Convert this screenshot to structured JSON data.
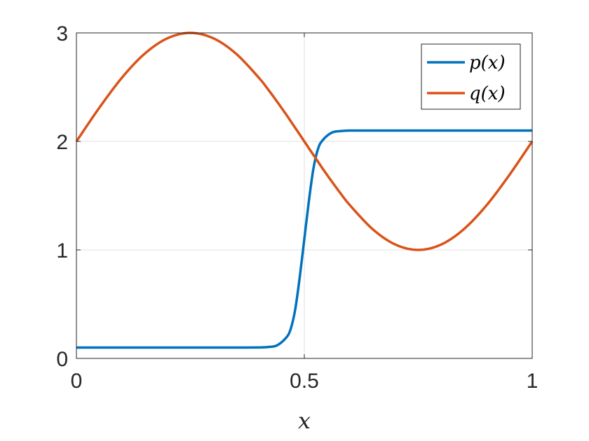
{
  "chart_data": {
    "type": "line",
    "title": "",
    "xlabel": "x",
    "ylabel": "",
    "xlim": [
      0,
      1
    ],
    "ylim": [
      0,
      3
    ],
    "xticks": [
      0,
      0.5,
      1
    ],
    "xtick_labels": [
      "0",
      "0.5",
      "1"
    ],
    "yticks": [
      0,
      1,
      2,
      3
    ],
    "ytick_labels": [
      "0",
      "1",
      "2",
      "3"
    ],
    "grid": true,
    "legend_position": "top-right",
    "x": [
      0,
      0.05,
      0.1,
      0.15,
      0.2,
      0.25,
      0.3,
      0.35,
      0.4,
      0.42,
      0.44,
      0.46,
      0.47,
      0.48,
      0.49,
      0.5,
      0.51,
      0.52,
      0.53,
      0.54,
      0.56,
      0.58,
      0.6,
      0.65,
      0.7,
      0.75,
      0.8,
      0.85,
      0.9,
      0.95,
      1
    ],
    "series": [
      {
        "name": "p(x)",
        "color": "#0072BD",
        "values": [
          0.1,
          0.1,
          0.1,
          0.1,
          0.1,
          0.1,
          0.1,
          0.1,
          0.101,
          0.105,
          0.12,
          0.19,
          0.27,
          0.45,
          0.75,
          1.1,
          1.45,
          1.75,
          1.93,
          2.01,
          2.08,
          2.095,
          2.1,
          2.1,
          2.1,
          2.1,
          2.1,
          2.1,
          2.1,
          2.1,
          2.1
        ]
      },
      {
        "name": "q(x)",
        "color": "#D95319",
        "values": [
          2,
          2.309,
          2.588,
          2.809,
          2.951,
          3,
          2.951,
          2.809,
          2.588,
          2.482,
          2.368,
          2.249,
          2.187,
          2.125,
          2.063,
          2,
          1.937,
          1.875,
          1.813,
          1.751,
          1.632,
          1.518,
          1.412,
          1.191,
          1.049,
          1,
          1.049,
          1.191,
          1.412,
          1.691,
          2
        ]
      }
    ]
  }
}
